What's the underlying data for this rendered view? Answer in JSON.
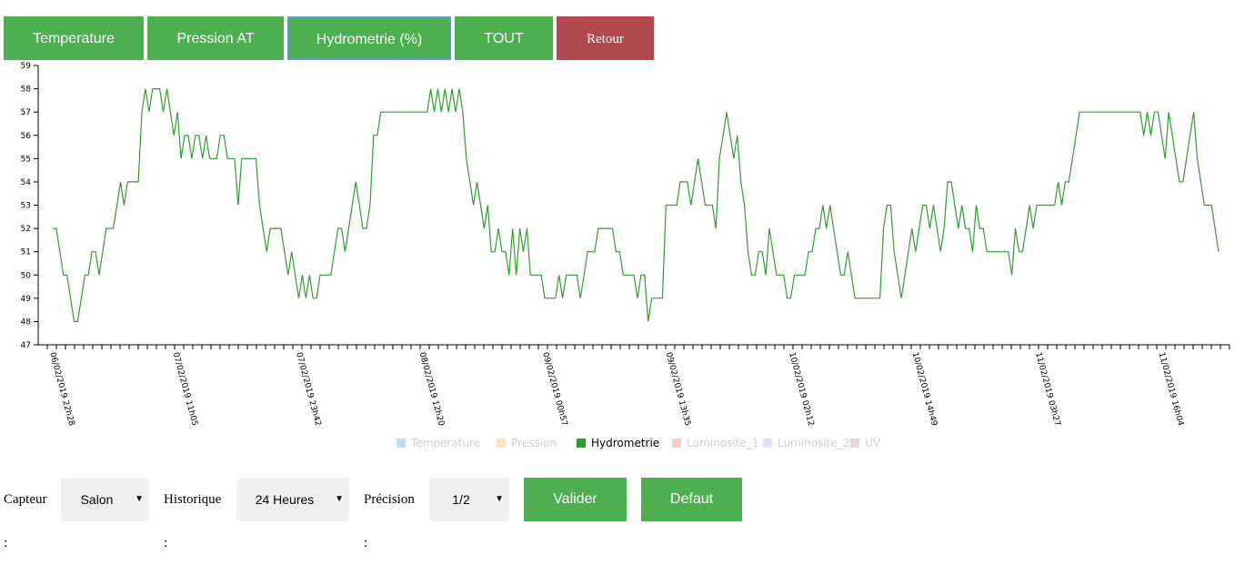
{
  "tabs": [
    {
      "label": "Temperature"
    },
    {
      "label": "Pression AT"
    },
    {
      "label": "Hydrometrie (%)"
    },
    {
      "label": "TOUT"
    },
    {
      "label": "Retour"
    }
  ],
  "colors": {
    "accent_green": "#4caf50",
    "retour_red": "#b04a50",
    "series_green": "#2e9e2e"
  },
  "chart_data": {
    "type": "line",
    "ylim": [
      47,
      59
    ],
    "yticks": [
      47,
      48,
      49,
      50,
      51,
      52,
      53,
      54,
      55,
      56,
      57,
      58,
      59
    ],
    "xlabels": [
      "06/02/2019 22h28",
      "07/02/2019 11h05",
      "07/02/2019 23h42",
      "08/02/2019 12h20",
      "09/02/2019 00h57",
      "09/02/2019 13h35",
      "10/02/2019 02h12",
      "10/02/2019 14h49",
      "11/02/2019 03h27",
      "11/02/2019 16h04"
    ],
    "legend": [
      {
        "name": "Temperature",
        "color": "#c5dcef",
        "active": false
      },
      {
        "name": "Pression",
        "color": "#fde3c4",
        "active": false
      },
      {
        "name": "Hydrometrie",
        "color": "#2e9e2e",
        "active": true
      },
      {
        "name": "Luminosite_1",
        "color": "#f6cccc",
        "active": false
      },
      {
        "name": "Luminosite_2",
        "color": "#e1e1f3",
        "active": false
      },
      {
        "name": "UV",
        "color": "#e5d8d8",
        "active": false
      }
    ],
    "series": [
      {
        "name": "Hydrometrie",
        "values": [
          52,
          52,
          51,
          50,
          50,
          49,
          48,
          48,
          49,
          50,
          50,
          51,
          51,
          50,
          51,
          52,
          52,
          52,
          53,
          54,
          53,
          54,
          54,
          54,
          54,
          57,
          58,
          57,
          58,
          58,
          58,
          57,
          58,
          57,
          56,
          57,
          55,
          56,
          56,
          55,
          56,
          56,
          55,
          56,
          55,
          55,
          55,
          56,
          56,
          55,
          55,
          55,
          53,
          55,
          55,
          55,
          55,
          55,
          53,
          52,
          51,
          52,
          52,
          52,
          52,
          51,
          50,
          51,
          50,
          49,
          50,
          49,
          50,
          49,
          49,
          50,
          50,
          50,
          50,
          51,
          52,
          52,
          51,
          52,
          53,
          54,
          53,
          52,
          52,
          53,
          56,
          56,
          57,
          57,
          57,
          57,
          57,
          57,
          57,
          57,
          57,
          57,
          57,
          57,
          57,
          57,
          58,
          57,
          58,
          57,
          58,
          57,
          58,
          57,
          58,
          57,
          55,
          54,
          53,
          54,
          53,
          52,
          53,
          51,
          51,
          52,
          51,
          51,
          50,
          52,
          50,
          52,
          51,
          52,
          50,
          50,
          50,
          50,
          49,
          49,
          49,
          49,
          50,
          49,
          50,
          50,
          50,
          50,
          49,
          50,
          51,
          51,
          51,
          52,
          52,
          52,
          52,
          52,
          51,
          51,
          50,
          50,
          50,
          50,
          49,
          50,
          50,
          48,
          49,
          49,
          49,
          49,
          53,
          53,
          53,
          53,
          54,
          54,
          54,
          53,
          54,
          55,
          54,
          53,
          53,
          53,
          52,
          55,
          56,
          57,
          56,
          55,
          56,
          54,
          53,
          51,
          50,
          50,
          51,
          51,
          50,
          52,
          51,
          50,
          50,
          50,
          49,
          49,
          50,
          50,
          50,
          50,
          51,
          51,
          52,
          52,
          53,
          52,
          53,
          52,
          51,
          50,
          50,
          51,
          50,
          49,
          49,
          49,
          49,
          49,
          49,
          49,
          49,
          52,
          53,
          53,
          51,
          50,
          49,
          50,
          51,
          52,
          51,
          52,
          53,
          53,
          52,
          53,
          52,
          51,
          52,
          54,
          54,
          53,
          52,
          53,
          52,
          52,
          51,
          53,
          52,
          52,
          51,
          51,
          51,
          51,
          51,
          51,
          51,
          50,
          52,
          51,
          51,
          52,
          53,
          52,
          53,
          53,
          53,
          53,
          53,
          53,
          54,
          53,
          54,
          54,
          55,
          56,
          57,
          57,
          57,
          57,
          57,
          57,
          57,
          57,
          57,
          57,
          57,
          57,
          57,
          57,
          57,
          57,
          57,
          57,
          56,
          57,
          56,
          57,
          57,
          56,
          55,
          57,
          56,
          55,
          54,
          54,
          55,
          56,
          57,
          55,
          54,
          53,
          53,
          53,
          52,
          51
        ]
      }
    ]
  },
  "controls": {
    "capteur_label": "Capteur :",
    "capteur_value": "Salon",
    "historique_label": "Historique :",
    "historique_value": "24 Heures",
    "precision_label": "Précision :",
    "precision_value": "1/2",
    "valider_label": "Valider",
    "defaut_label": "Defaut"
  }
}
